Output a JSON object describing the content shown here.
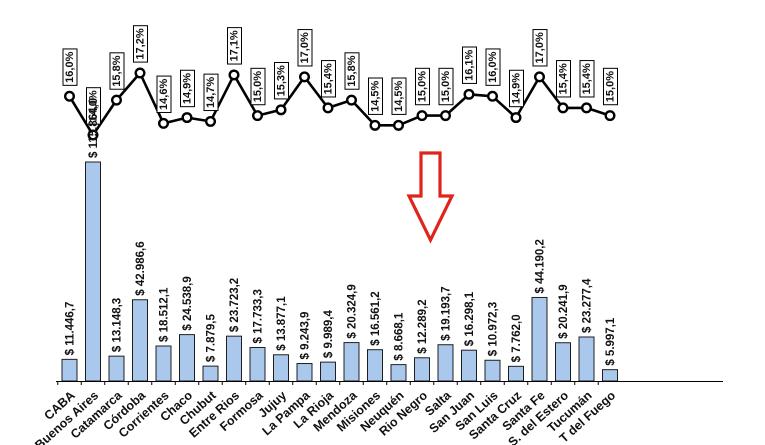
{
  "chart_data": [
    {
      "type": "line",
      "categories": [
        "CABA",
        "Buenos Aires",
        "Catamarca",
        "Córdoba",
        "Corrientes",
        "Chaco",
        "Chubut",
        "Entre Ríos",
        "Formosa",
        "Jujuy",
        "La Pampa",
        "La Rioja",
        "Mendoza",
        "Misiones",
        "Neuquén",
        "Río Negro",
        "Salta",
        "San Juan",
        "San Luis",
        "Santa Cruz",
        "Santa Fe",
        "S. del Estero",
        "Tucumán",
        "T. del Fuego"
      ],
      "values": [
        16.0,
        14.0,
        15.8,
        17.2,
        14.6,
        14.9,
        14.7,
        17.1,
        15.0,
        15.3,
        17.0,
        15.4,
        15.8,
        14.5,
        14.5,
        15.0,
        15.0,
        16.1,
        16.0,
        14.9,
        17.0,
        15.4,
        15.4,
        15.0
      ],
      "value_labels": [
        "16,0%",
        "14,0%",
        "15,8%",
        "17,2%",
        "14,6%",
        "14,9%",
        "14,7%",
        "17,1%",
        "15,0%",
        "15,3%",
        "17,0%",
        "15,4%",
        "15,8%",
        "14,5%",
        "14,5%",
        "15,0%",
        "15,0%",
        "16,1%",
        "16,0%",
        "14,9%",
        "17,0%",
        "15,4%",
        "15,4%",
        "15,0%"
      ],
      "ylim": [
        14.0,
        17.2
      ],
      "grid": false,
      "line_color": "#000000"
    },
    {
      "type": "bar",
      "categories": [
        "CABA",
        "Buenos Aires",
        "Catamarca",
        "Córdoba",
        "Corrientes",
        "Chaco",
        "Chubut",
        "Entre Ríos",
        "Formosa",
        "Jujuy",
        "La Pampa",
        "La Rioja",
        "Mendoza",
        "Misiones",
        "Neuquén",
        "Río Negro",
        "Salta",
        "San Juan",
        "San Luis",
        "Santa Cruz",
        "Santa Fe",
        "S. del Estero",
        "Tucumán",
        "T. del Fuego"
      ],
      "values": [
        11446.7,
        115864.0,
        13148.3,
        42986.6,
        18512.1,
        24538.9,
        7879.5,
        23723.2,
        17733.3,
        13877.1,
        9243.9,
        9989.4,
        20324.9,
        16561.2,
        8668.1,
        12289.2,
        19193.7,
        16298.1,
        10972.3,
        7762.0,
        44190.2,
        20241.9,
        23277.4,
        5997.1
      ],
      "value_labels": [
        "$ 11.446,7",
        "$ 115.864,0",
        "$ 13.148,3",
        "$ 42.986,6",
        "$ 18.512,1",
        "$ 24.538,9",
        "$ 7.879,5",
        "$ 23.723,2",
        "$ 17.733,3",
        "$ 13.877,1",
        "$ 9.243,9",
        "$ 9.989,4",
        "$ 20.324,9",
        "$ 16.561,2",
        "$ 8.668,1",
        "$ 12.289,2",
        "$ 19.193,7",
        "$ 16.298,1",
        "$ 10.972,3",
        "$ 7.762,0",
        "$ 44.190,2",
        "$ 20.241,9",
        "$ 23.277,4",
        "$ 5.997,1"
      ],
      "tick_labels": [
        "CABA",
        "Buenos Aires",
        "Catamarca",
        "Córdoba",
        "Corrientes",
        "Chaco",
        "Chubut",
        "Entre Rios",
        "Formosa",
        "Jujuy",
        "La Pampa",
        "La Rioja",
        "Mendoza",
        "Misiones",
        "Neuquén",
        "Rio Negro",
        "Salta",
        "San Juan",
        "San Luis",
        "Santa Cruz",
        "Santa Fe",
        "S. del Estero",
        "Tucumán",
        "T del Fuego"
      ],
      "ylim": [
        0,
        115864.0
      ],
      "grid": false,
      "bar_color": "#a9c8ec",
      "bar_edge_color": "#1f1f1f"
    }
  ],
  "annotation": {
    "type": "down-arrow",
    "color": "#e0241b"
  }
}
